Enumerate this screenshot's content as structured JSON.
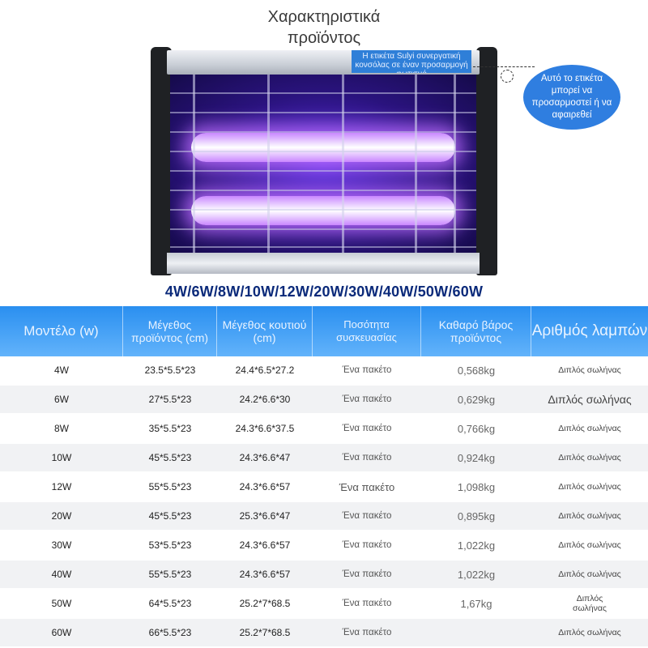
{
  "title": {
    "line1": "Χαρακτηριστικά",
    "line2": "προϊόντος"
  },
  "product": {
    "tag_text": "Η ετικέτα Sulyi συνεργατική κονσόλας σε έναν προσαρμογή φωτισμό",
    "note": "Αυτό το ετικέτα μπορεί να προσαρμοστεί ή να αφαιρεθεί"
  },
  "wattages": "4W/6W/8W/10W/12W/20W/30W/40W/50W/60W",
  "table": {
    "headers": [
      "Μοντέλο (w)",
      "Μέγεθος προϊόντος (cm)",
      "Μέγεθος κουτιού (cm)",
      "Ποσότητα συσκευασίας",
      "Καθαρό βάρος προϊόντος",
      "Αριθμός λαμπών"
    ],
    "rows": [
      {
        "model": "4W",
        "size": "23.5*5.5*23",
        "box": "24.4*6.5*27.2",
        "pack": "Ένα πακέτο",
        "weight": "0,568kg",
        "lamps": "Διπλός σωλήνας"
      },
      {
        "model": "6W",
        "size": "27*5.5*23",
        "box": "24.2*6.6*30",
        "pack": "Ένα πακέτο",
        "weight": "0,629kg",
        "lamps": "Διπλός σωλήνας"
      },
      {
        "model": "8W",
        "size": "35*5.5*23",
        "box": "24.3*6.6*37.5",
        "pack": "Ένα πακέτο",
        "weight": "0,766kg",
        "lamps": "Διπλός σωλήνας"
      },
      {
        "model": "10W",
        "size": "45*5.5*23",
        "box": "24.3*6.6*47",
        "pack": "Ένα πακέτο",
        "weight": "0,924kg",
        "lamps": "Διπλός σωλήνας"
      },
      {
        "model": "12W",
        "size": "55*5.5*23",
        "box": "24.3*6.6*57",
        "pack": "Ένα πακέτο",
        "weight": "1,098kg",
        "lamps": "Διπλός σωλήνας"
      },
      {
        "model": "20W",
        "size": "45*5.5*23",
        "box": "25.3*6.6*47",
        "pack": "Ένα πακέτο",
        "weight": "0,895kg",
        "lamps": "Διπλός σωλήνας"
      },
      {
        "model": "30W",
        "size": "53*5.5*23",
        "box": "24.3*6.6*57",
        "pack": "Ένα πακέτο",
        "weight": "1,022kg",
        "lamps": "Διπλός σωλήνας"
      },
      {
        "model": "40W",
        "size": "55*5.5*23",
        "box": "24.3*6.6*57",
        "pack": "Ένα πακέτο",
        "weight": "1,022kg",
        "lamps": "Διπλός σωλήνας"
      },
      {
        "model": "50W",
        "size": "64*5.5*23",
        "box": "25.2*7*68.5",
        "pack": "Ένα πακέτο",
        "weight": "1,67kg",
        "lamps": "Διπλός σωλήνας"
      },
      {
        "model": "60W",
        "size": "66*5.5*23",
        "box": "25.2*7*68.5",
        "pack": "Ένα πακέτο",
        "weight": "",
        "lamps": "Διπλός σωλήνας"
      }
    ]
  },
  "colors": {
    "header_top": "#2a8ff0",
    "header_bottom": "#62b3fb",
    "accent_text": "#0b2a7a",
    "uv_glow": "#5a2fe0"
  }
}
